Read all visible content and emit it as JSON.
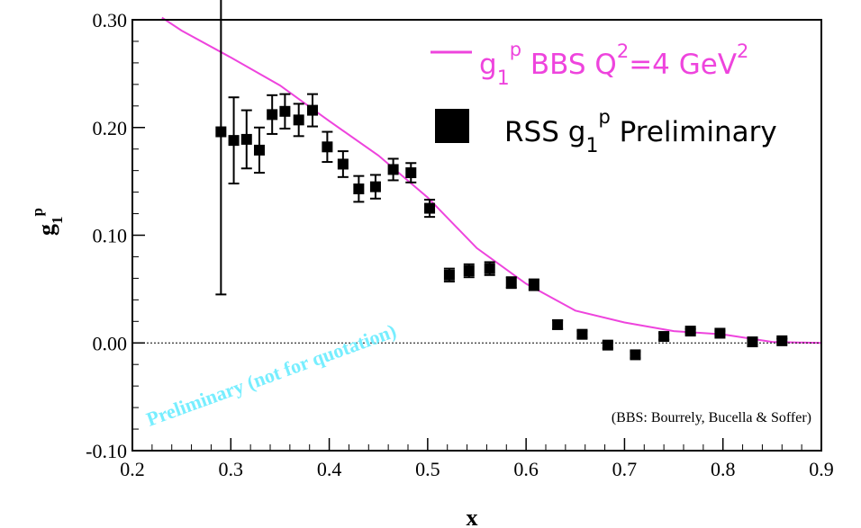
{
  "chart_data": {
    "type": "scatter",
    "title": "",
    "xlabel": "x",
    "ylabel": {
      "main": "g",
      "sub": "1",
      "sup": "p"
    },
    "xlim": [
      0.2,
      0.9
    ],
    "ylim": [
      -0.1,
      0.3
    ],
    "x_ticks": [
      {
        "value": 0.2,
        "label": "0.2"
      },
      {
        "value": 0.3,
        "label": "0.3"
      },
      {
        "value": 0.4,
        "label": "0.4"
      },
      {
        "value": 0.5,
        "label": "0.5"
      },
      {
        "value": 0.6,
        "label": "0.6"
      },
      {
        "value": 0.7,
        "label": "0.7"
      },
      {
        "value": 0.8,
        "label": "0.8"
      },
      {
        "value": 0.9,
        "label": "0.9"
      }
    ],
    "y_ticks": [
      {
        "value": -0.1,
        "label": "-0.10"
      },
      {
        "value": 0.0,
        "label": "0.00"
      },
      {
        "value": 0.1,
        "label": "0.10"
      },
      {
        "value": 0.2,
        "label": "0.20"
      },
      {
        "value": 0.3,
        "label": "0.30"
      }
    ],
    "zero_line": true,
    "grid": false,
    "legend_position": "top-right",
    "legend": [
      {
        "parts": [
          "g",
          "1",
          "p",
          " BBS Q",
          "2",
          "=4 GeV",
          "2"
        ],
        "color": "#ee44dd",
        "marker": "line"
      },
      {
        "parts": [
          "RSS g",
          "1",
          "p",
          " Preliminary"
        ],
        "color": "#000000",
        "marker": "square"
      }
    ],
    "series": [
      {
        "type": "errorbar-points",
        "color": "#000000",
        "points": [
          {
            "x": 0.29,
            "y": 0.196,
            "err": 0.151
          },
          {
            "x": 0.303,
            "y": 0.188,
            "err": 0.04
          },
          {
            "x": 0.316,
            "y": 0.189,
            "err": 0.027
          },
          {
            "x": 0.329,
            "y": 0.179,
            "err": 0.021
          },
          {
            "x": 0.342,
            "y": 0.212,
            "err": 0.018
          },
          {
            "x": 0.355,
            "y": 0.215,
            "err": 0.016
          },
          {
            "x": 0.369,
            "y": 0.207,
            "err": 0.015
          },
          {
            "x": 0.383,
            "y": 0.216,
            "err": 0.015
          },
          {
            "x": 0.398,
            "y": 0.182,
            "err": 0.014
          },
          {
            "x": 0.414,
            "y": 0.166,
            "err": 0.012
          },
          {
            "x": 0.43,
            "y": 0.143,
            "err": 0.012
          },
          {
            "x": 0.447,
            "y": 0.145,
            "err": 0.011
          },
          {
            "x": 0.465,
            "y": 0.161,
            "err": 0.01
          },
          {
            "x": 0.483,
            "y": 0.158,
            "err": 0.009
          },
          {
            "x": 0.502,
            "y": 0.125,
            "err": 0.008
          },
          {
            "x": 0.522,
            "y": 0.063,
            "err": 0.006
          },
          {
            "x": 0.542,
            "y": 0.067,
            "err": 0.006
          },
          {
            "x": 0.563,
            "y": 0.069,
            "err": 0.006
          },
          {
            "x": 0.585,
            "y": 0.056,
            "err": 0.005
          },
          {
            "x": 0.608,
            "y": 0.054,
            "err": 0.005
          },
          {
            "x": 0.632,
            "y": 0.017,
            "err": 0.004
          },
          {
            "x": 0.657,
            "y": 0.008,
            "err": 0.003
          },
          {
            "x": 0.683,
            "y": -0.002,
            "err": 0.003
          },
          {
            "x": 0.711,
            "y": -0.011,
            "err": 0.003
          },
          {
            "x": 0.74,
            "y": 0.006,
            "err": 0.003
          },
          {
            "x": 0.767,
            "y": 0.011,
            "err": 0.002
          },
          {
            "x": 0.797,
            "y": 0.009,
            "err": 0.002
          },
          {
            "x": 0.83,
            "y": 0.001,
            "err": 0.002
          },
          {
            "x": 0.86,
            "y": 0.002,
            "err": 0.002
          }
        ]
      },
      {
        "type": "curve",
        "color": "#ee44dd",
        "x": [
          0.23,
          0.25,
          0.3,
          0.35,
          0.4,
          0.45,
          0.5,
          0.55,
          0.6,
          0.65,
          0.7,
          0.75,
          0.8,
          0.85,
          0.9
        ],
        "y": [
          0.302,
          0.29,
          0.265,
          0.239,
          0.206,
          0.174,
          0.135,
          0.088,
          0.055,
          0.03,
          0.019,
          0.011,
          0.008,
          0.001,
          0.0
        ]
      }
    ],
    "annotations": [
      {
        "text": "Preliminary (not for quotation)",
        "color": "#77eeff"
      },
      {
        "text": "(BBS:  Bourrely, Bucella & Soffer)",
        "color": "#000000"
      }
    ]
  }
}
